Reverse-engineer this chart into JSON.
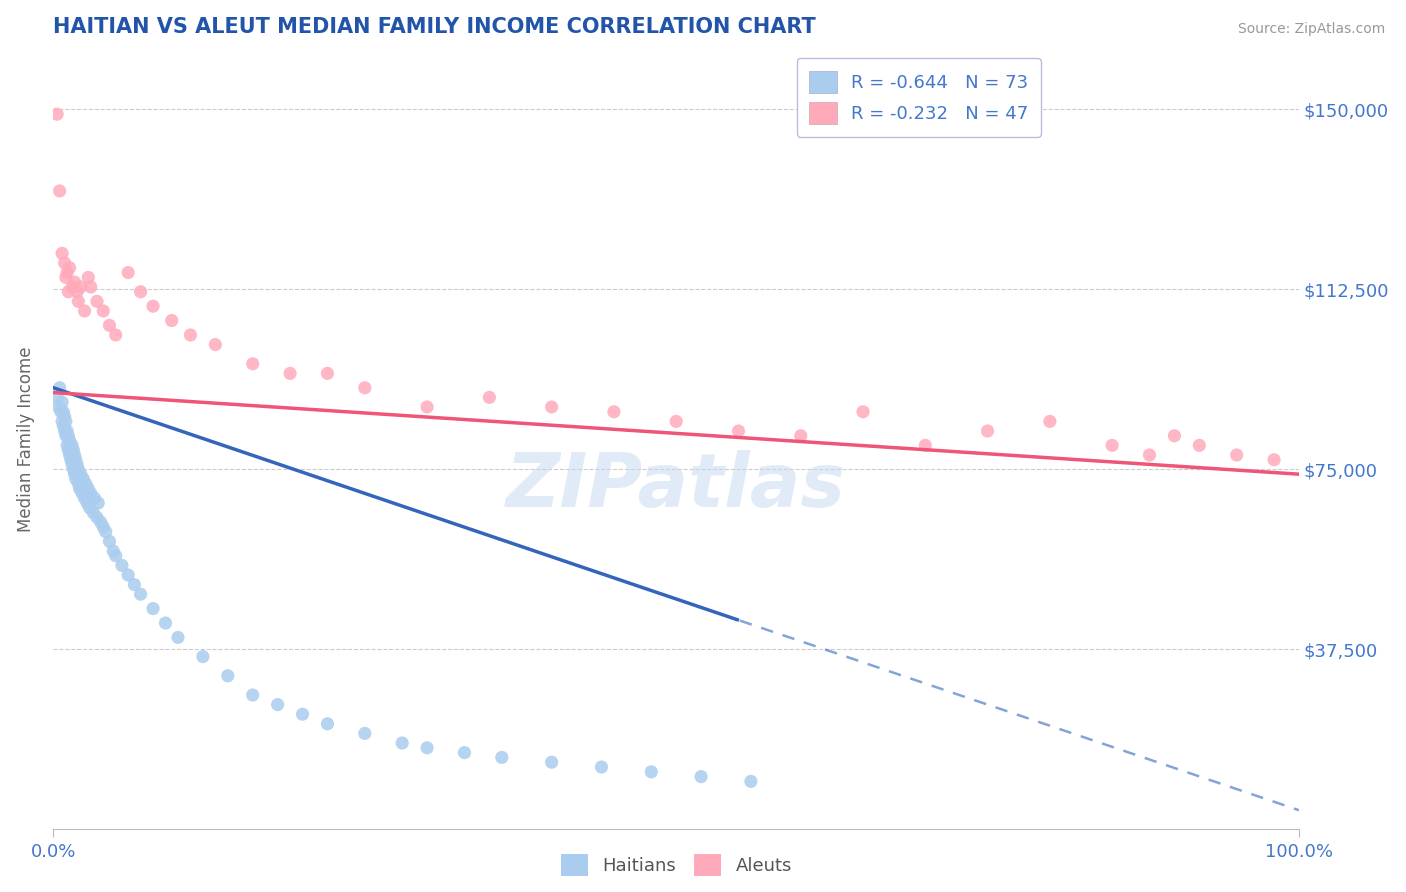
{
  "title": "HAITIAN VS ALEUT MEDIAN FAMILY INCOME CORRELATION CHART",
  "source": "Source: ZipAtlas.com",
  "ylabel": "Median Family Income",
  "xlim": [
    0,
    1.0
  ],
  "ylim": [
    0,
    162500
  ],
  "yticks": [
    0,
    37500,
    75000,
    112500,
    150000
  ],
  "ytick_labels": [
    "",
    "$37,500",
    "$75,000",
    "$112,500",
    "$150,000"
  ],
  "xtick_labels": [
    "0.0%",
    "100.0%"
  ],
  "title_color": "#2255aa",
  "axis_color": "#4477cc",
  "watermark": "ZIPatlas",
  "legend_R1": "R = -0.644",
  "legend_N1": "N = 73",
  "legend_R2": "R = -0.232",
  "legend_N2": "N = 47",
  "series1_color": "#aaccee",
  "series2_color": "#ffaabb",
  "line1_color": "#3366bb",
  "line2_color": "#ee5577",
  "line1_intercept": 92000,
  "line1_slope": -88000,
  "line2_intercept": 91000,
  "line2_slope": -17000,
  "line1_solid_end": 0.55,
  "haitians_x": [
    0.003,
    0.004,
    0.005,
    0.006,
    0.007,
    0.007,
    0.008,
    0.008,
    0.009,
    0.009,
    0.01,
    0.01,
    0.011,
    0.011,
    0.012,
    0.012,
    0.013,
    0.013,
    0.014,
    0.015,
    0.015,
    0.016,
    0.016,
    0.017,
    0.017,
    0.018,
    0.018,
    0.019,
    0.02,
    0.02,
    0.021,
    0.022,
    0.023,
    0.024,
    0.025,
    0.026,
    0.027,
    0.028,
    0.029,
    0.03,
    0.032,
    0.033,
    0.035,
    0.036,
    0.038,
    0.04,
    0.042,
    0.045,
    0.048,
    0.05,
    0.055,
    0.06,
    0.065,
    0.07,
    0.08,
    0.09,
    0.1,
    0.12,
    0.14,
    0.16,
    0.18,
    0.2,
    0.22,
    0.25,
    0.28,
    0.3,
    0.33,
    0.36,
    0.4,
    0.44,
    0.48,
    0.52,
    0.56
  ],
  "haitians_y": [
    90000,
    88000,
    92000,
    87000,
    85000,
    89000,
    84000,
    87000,
    83000,
    86000,
    82000,
    85000,
    80000,
    83000,
    79000,
    82000,
    78000,
    81000,
    77000,
    80000,
    76000,
    79000,
    75000,
    78000,
    74000,
    77000,
    73000,
    76000,
    72000,
    75000,
    71000,
    74000,
    70000,
    73000,
    69000,
    72000,
    68000,
    71000,
    67000,
    70000,
    66000,
    69000,
    65000,
    68000,
    64000,
    63000,
    62000,
    60000,
    58000,
    57000,
    55000,
    53000,
    51000,
    49000,
    46000,
    43000,
    40000,
    36000,
    32000,
    28000,
    26000,
    24000,
    22000,
    20000,
    18000,
    17000,
    16000,
    15000,
    14000,
    13000,
    12000,
    11000,
    10000
  ],
  "aleuts_x": [
    0.003,
    0.005,
    0.007,
    0.009,
    0.01,
    0.011,
    0.012,
    0.013,
    0.015,
    0.017,
    0.019,
    0.02,
    0.022,
    0.025,
    0.028,
    0.03,
    0.035,
    0.04,
    0.045,
    0.05,
    0.06,
    0.07,
    0.08,
    0.095,
    0.11,
    0.13,
    0.16,
    0.19,
    0.22,
    0.25,
    0.3,
    0.35,
    0.4,
    0.45,
    0.5,
    0.55,
    0.6,
    0.65,
    0.7,
    0.75,
    0.8,
    0.85,
    0.88,
    0.9,
    0.92,
    0.95,
    0.98
  ],
  "aleuts_y": [
    149000,
    133000,
    120000,
    118000,
    115000,
    116000,
    112000,
    117000,
    113000,
    114000,
    112000,
    110000,
    113000,
    108000,
    115000,
    113000,
    110000,
    108000,
    105000,
    103000,
    116000,
    112000,
    109000,
    106000,
    103000,
    101000,
    97000,
    95000,
    95000,
    92000,
    88000,
    90000,
    88000,
    87000,
    85000,
    83000,
    82000,
    87000,
    80000,
    83000,
    85000,
    80000,
    78000,
    82000,
    80000,
    78000,
    77000
  ]
}
